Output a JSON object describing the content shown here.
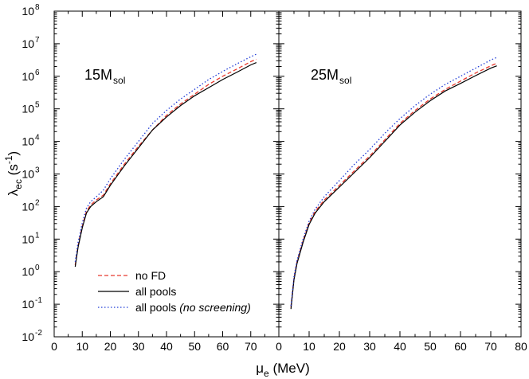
{
  "chart_data": [
    {
      "type": "line",
      "panel_label": {
        "main": "15M",
        "sub": "sol"
      },
      "xlim": [
        0,
        80
      ],
      "ylim_exponent": [
        -2,
        8
      ],
      "yscale": "log",
      "series": [
        {
          "name": "no FD",
          "style": "dashed",
          "color": "#e8392e",
          "x": [
            7.5,
            8.5,
            10,
            11.5,
            13,
            15,
            17.5,
            20,
            25,
            30,
            35,
            40,
            45,
            50,
            55,
            60,
            65,
            70,
            72
          ],
          "log10_y": [
            0.2,
            0.8,
            1.4,
            1.85,
            2.05,
            2.2,
            2.35,
            2.7,
            3.3,
            3.85,
            4.35,
            4.8,
            5.15,
            5.45,
            5.75,
            6.0,
            6.22,
            6.45,
            6.52
          ]
        },
        {
          "name": "all pools",
          "style": "solid",
          "color": "#000000",
          "x": [
            7.5,
            8.5,
            10,
            11.5,
            13,
            15,
            17.5,
            20,
            25,
            30,
            35,
            40,
            45,
            50,
            55,
            60,
            65,
            70,
            72
          ],
          "log10_y": [
            0.15,
            0.75,
            1.35,
            1.8,
            2.0,
            2.15,
            2.3,
            2.65,
            3.25,
            3.8,
            4.35,
            4.75,
            5.1,
            5.4,
            5.65,
            5.9,
            6.12,
            6.35,
            6.42
          ]
        },
        {
          "name": "all pools (no screening)",
          "style": "dotted",
          "color": "#1f3bd6",
          "x": [
            7.5,
            8.5,
            10,
            11.5,
            13,
            15,
            17.5,
            20,
            25,
            30,
            35,
            40,
            45,
            50,
            55,
            60,
            65,
            70,
            72
          ],
          "log10_y": [
            0.3,
            0.9,
            1.5,
            1.95,
            2.15,
            2.3,
            2.5,
            2.85,
            3.45,
            4.0,
            4.55,
            4.95,
            5.3,
            5.6,
            5.9,
            6.15,
            6.38,
            6.6,
            6.68
          ]
        }
      ]
    },
    {
      "type": "line",
      "panel_label": {
        "main": "25M",
        "sub": "sol"
      },
      "xlim": [
        0,
        80
      ],
      "ylim_exponent": [
        -2,
        8
      ],
      "yscale": "log",
      "series": [
        {
          "name": "no FD",
          "style": "dashed",
          "color": "#e8392e",
          "x": [
            4,
            5,
            6,
            8,
            10,
            12,
            15,
            20,
            25,
            30,
            35,
            40,
            45,
            50,
            55,
            60,
            65,
            70,
            72
          ],
          "log10_y": [
            -1.1,
            -0.2,
            0.3,
            0.95,
            1.5,
            1.85,
            2.2,
            2.65,
            3.1,
            3.55,
            4.05,
            4.55,
            4.95,
            5.3,
            5.6,
            5.85,
            6.1,
            6.32,
            6.4
          ]
        },
        {
          "name": "all pools",
          "style": "solid",
          "color": "#000000",
          "x": [
            4,
            5,
            6,
            8,
            10,
            12,
            15,
            20,
            25,
            30,
            35,
            40,
            45,
            50,
            55,
            60,
            65,
            70,
            72
          ],
          "log10_y": [
            -1.15,
            -0.25,
            0.25,
            0.9,
            1.45,
            1.8,
            2.15,
            2.6,
            3.05,
            3.5,
            4.0,
            4.5,
            4.9,
            5.25,
            5.55,
            5.78,
            6.02,
            6.25,
            6.32
          ]
        },
        {
          "name": "all pools (no screening)",
          "style": "dotted",
          "color": "#1f3bd6",
          "x": [
            4,
            5,
            6,
            8,
            10,
            12,
            15,
            20,
            25,
            30,
            35,
            40,
            45,
            50,
            55,
            60,
            65,
            70,
            72
          ],
          "log10_y": [
            -1.05,
            -0.15,
            0.35,
            1.0,
            1.55,
            1.92,
            2.3,
            2.8,
            3.3,
            3.75,
            4.25,
            4.7,
            5.1,
            5.45,
            5.75,
            6.0,
            6.25,
            6.5,
            6.58
          ]
        }
      ]
    }
  ],
  "axes": {
    "y_title": {
      "main": "λ",
      "sub": "ec",
      "rest": " (s",
      "sup": "-1",
      "close": ")"
    },
    "x_title": {
      "main": "μ",
      "sub": "e",
      "rest": " (MeV)"
    },
    "y_tick_base": "10",
    "y_tick_exponents": [
      "-2",
      "-1",
      "0",
      "1",
      "2",
      "3",
      "4",
      "5",
      "6",
      "7",
      "8"
    ],
    "x_ticks_left": [
      "0",
      "10",
      "20",
      "30",
      "40",
      "50",
      "60",
      "70"
    ],
    "x_ticks_right": [
      "0",
      "10",
      "20",
      "30",
      "40",
      "50",
      "60",
      "70",
      "80"
    ]
  },
  "legend": [
    {
      "label": "no FD",
      "style": "dashed",
      "color": "#e8392e"
    },
    {
      "label": "all pools",
      "style": "solid",
      "color": "#000000"
    },
    {
      "label": "all pools ",
      "italic": "(no screening)",
      "style": "dotted",
      "color": "#1f3bd6"
    }
  ]
}
